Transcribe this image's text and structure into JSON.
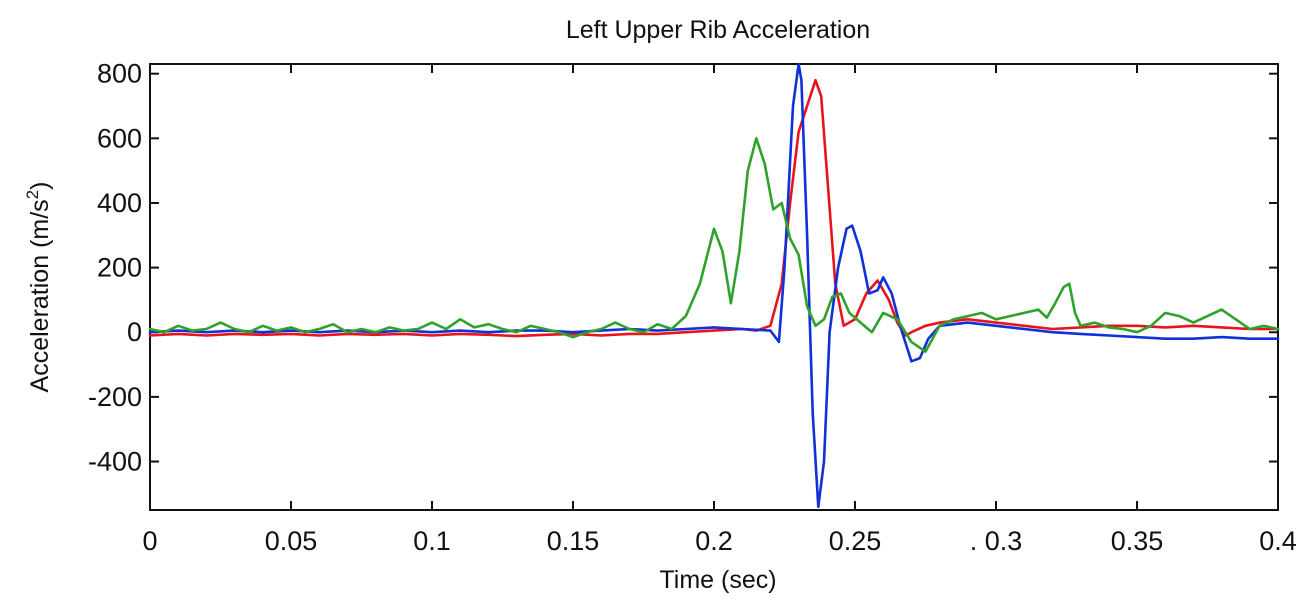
{
  "chart_data": {
    "type": "line",
    "title": "Left Upper Rib Acceleration",
    "xlabel": "Time (sec)",
    "ylabel_main": "Acceleration (m/s",
    "ylabel_sup": "2",
    "ylabel_close": ")",
    "xlim": [
      0,
      0.4
    ],
    "ylim": [
      -550,
      830
    ],
    "x_ticks": [
      0,
      0.05,
      0.1,
      0.15,
      0.2,
      0.25,
      0.3,
      0.35,
      0.4
    ],
    "x_tick_labels": [
      "0",
      "0.05",
      "0.1",
      "0.15",
      "0.2",
      "0.25",
      ". 0.3",
      "0.35",
      "0.4"
    ],
    "y_ticks": [
      800,
      600,
      400,
      200,
      0,
      -200,
      -400
    ],
    "y_tick_labels": [
      "800",
      "600",
      "400",
      "200",
      "0",
      "-200",
      "-400"
    ],
    "grid": false,
    "series": [
      {
        "color": "#e8141a",
        "x": [
          0,
          0.01,
          0.02,
          0.03,
          0.04,
          0.05,
          0.06,
          0.07,
          0.08,
          0.09,
          0.1,
          0.11,
          0.12,
          0.13,
          0.14,
          0.15,
          0.16,
          0.17,
          0.18,
          0.19,
          0.2,
          0.21,
          0.215,
          0.22,
          0.224,
          0.227,
          0.23,
          0.233,
          0.236,
          0.238,
          0.24,
          0.243,
          0.246,
          0.25,
          0.254,
          0.258,
          0.262,
          0.265,
          0.268,
          0.27,
          0.275,
          0.28,
          0.29,
          0.3,
          0.31,
          0.32,
          0.33,
          0.34,
          0.35,
          0.36,
          0.37,
          0.38,
          0.39,
          0.4
        ],
        "y": [
          -10,
          -5,
          -10,
          -5,
          -8,
          -5,
          -10,
          -5,
          -8,
          -5,
          -10,
          -5,
          -8,
          -12,
          -8,
          -5,
          -10,
          -5,
          -5,
          0,
          5,
          10,
          5,
          20,
          150,
          400,
          620,
          700,
          780,
          730,
          500,
          150,
          20,
          40,
          120,
          160,
          100,
          30,
          -10,
          0,
          20,
          30,
          40,
          30,
          20,
          10,
          15,
          20,
          20,
          15,
          20,
          15,
          10,
          10
        ]
      },
      {
        "color": "#1030d8",
        "x": [
          0,
          0.01,
          0.02,
          0.03,
          0.04,
          0.05,
          0.06,
          0.07,
          0.08,
          0.09,
          0.1,
          0.11,
          0.12,
          0.13,
          0.14,
          0.15,
          0.16,
          0.17,
          0.18,
          0.19,
          0.2,
          0.21,
          0.22,
          0.223,
          0.225,
          0.228,
          0.23,
          0.231,
          0.233,
          0.235,
          0.237,
          0.239,
          0.241,
          0.244,
          0.247,
          0.249,
          0.252,
          0.255,
          0.258,
          0.26,
          0.263,
          0.266,
          0.27,
          0.273,
          0.276,
          0.28,
          0.29,
          0.3,
          0.31,
          0.32,
          0.33,
          0.34,
          0.35,
          0.36,
          0.37,
          0.38,
          0.39,
          0.4
        ],
        "y": [
          0,
          5,
          0,
          5,
          0,
          5,
          0,
          5,
          0,
          5,
          0,
          5,
          0,
          5,
          5,
          0,
          5,
          10,
          5,
          10,
          15,
          10,
          5,
          -30,
          200,
          700,
          830,
          780,
          300,
          -250,
          -540,
          -400,
          0,
          200,
          320,
          330,
          250,
          120,
          130,
          170,
          120,
          20,
          -90,
          -80,
          -20,
          20,
          30,
          20,
          10,
          0,
          -5,
          -10,
          -15,
          -20,
          -20,
          -15,
          -20,
          -20
        ]
      },
      {
        "color": "#2fa22a",
        "x": [
          0,
          0.005,
          0.01,
          0.015,
          0.02,
          0.025,
          0.03,
          0.035,
          0.04,
          0.045,
          0.05,
          0.055,
          0.06,
          0.065,
          0.07,
          0.075,
          0.08,
          0.085,
          0.09,
          0.095,
          0.1,
          0.105,
          0.11,
          0.115,
          0.12,
          0.125,
          0.13,
          0.135,
          0.14,
          0.145,
          0.15,
          0.155,
          0.16,
          0.165,
          0.17,
          0.175,
          0.18,
          0.185,
          0.19,
          0.195,
          0.2,
          0.203,
          0.206,
          0.209,
          0.212,
          0.215,
          0.218,
          0.221,
          0.224,
          0.227,
          0.23,
          0.233,
          0.236,
          0.239,
          0.242,
          0.245,
          0.248,
          0.252,
          0.256,
          0.26,
          0.265,
          0.27,
          0.275,
          0.28,
          0.285,
          0.29,
          0.295,
          0.3,
          0.305,
          0.31,
          0.315,
          0.318,
          0.321,
          0.324,
          0.326,
          0.328,
          0.33,
          0.335,
          0.34,
          0.345,
          0.35,
          0.355,
          0.36,
          0.365,
          0.37,
          0.375,
          0.38,
          0.385,
          0.39,
          0.395,
          0.4
        ],
        "y": [
          10,
          0,
          20,
          5,
          10,
          30,
          10,
          0,
          20,
          5,
          15,
          0,
          10,
          25,
          0,
          10,
          0,
          15,
          5,
          10,
          30,
          10,
          40,
          15,
          25,
          10,
          0,
          20,
          10,
          0,
          -15,
          0,
          10,
          30,
          10,
          0,
          25,
          10,
          50,
          150,
          320,
          250,
          90,
          250,
          500,
          600,
          520,
          380,
          400,
          290,
          240,
          80,
          20,
          40,
          110,
          120,
          60,
          30,
          0,
          60,
          40,
          -30,
          -60,
          20,
          40,
          50,
          60,
          40,
          50,
          60,
          70,
          45,
          90,
          140,
          150,
          60,
          20,
          30,
          15,
          10,
          0,
          20,
          60,
          50,
          30,
          50,
          70,
          40,
          10,
          20,
          10
        ]
      }
    ]
  }
}
